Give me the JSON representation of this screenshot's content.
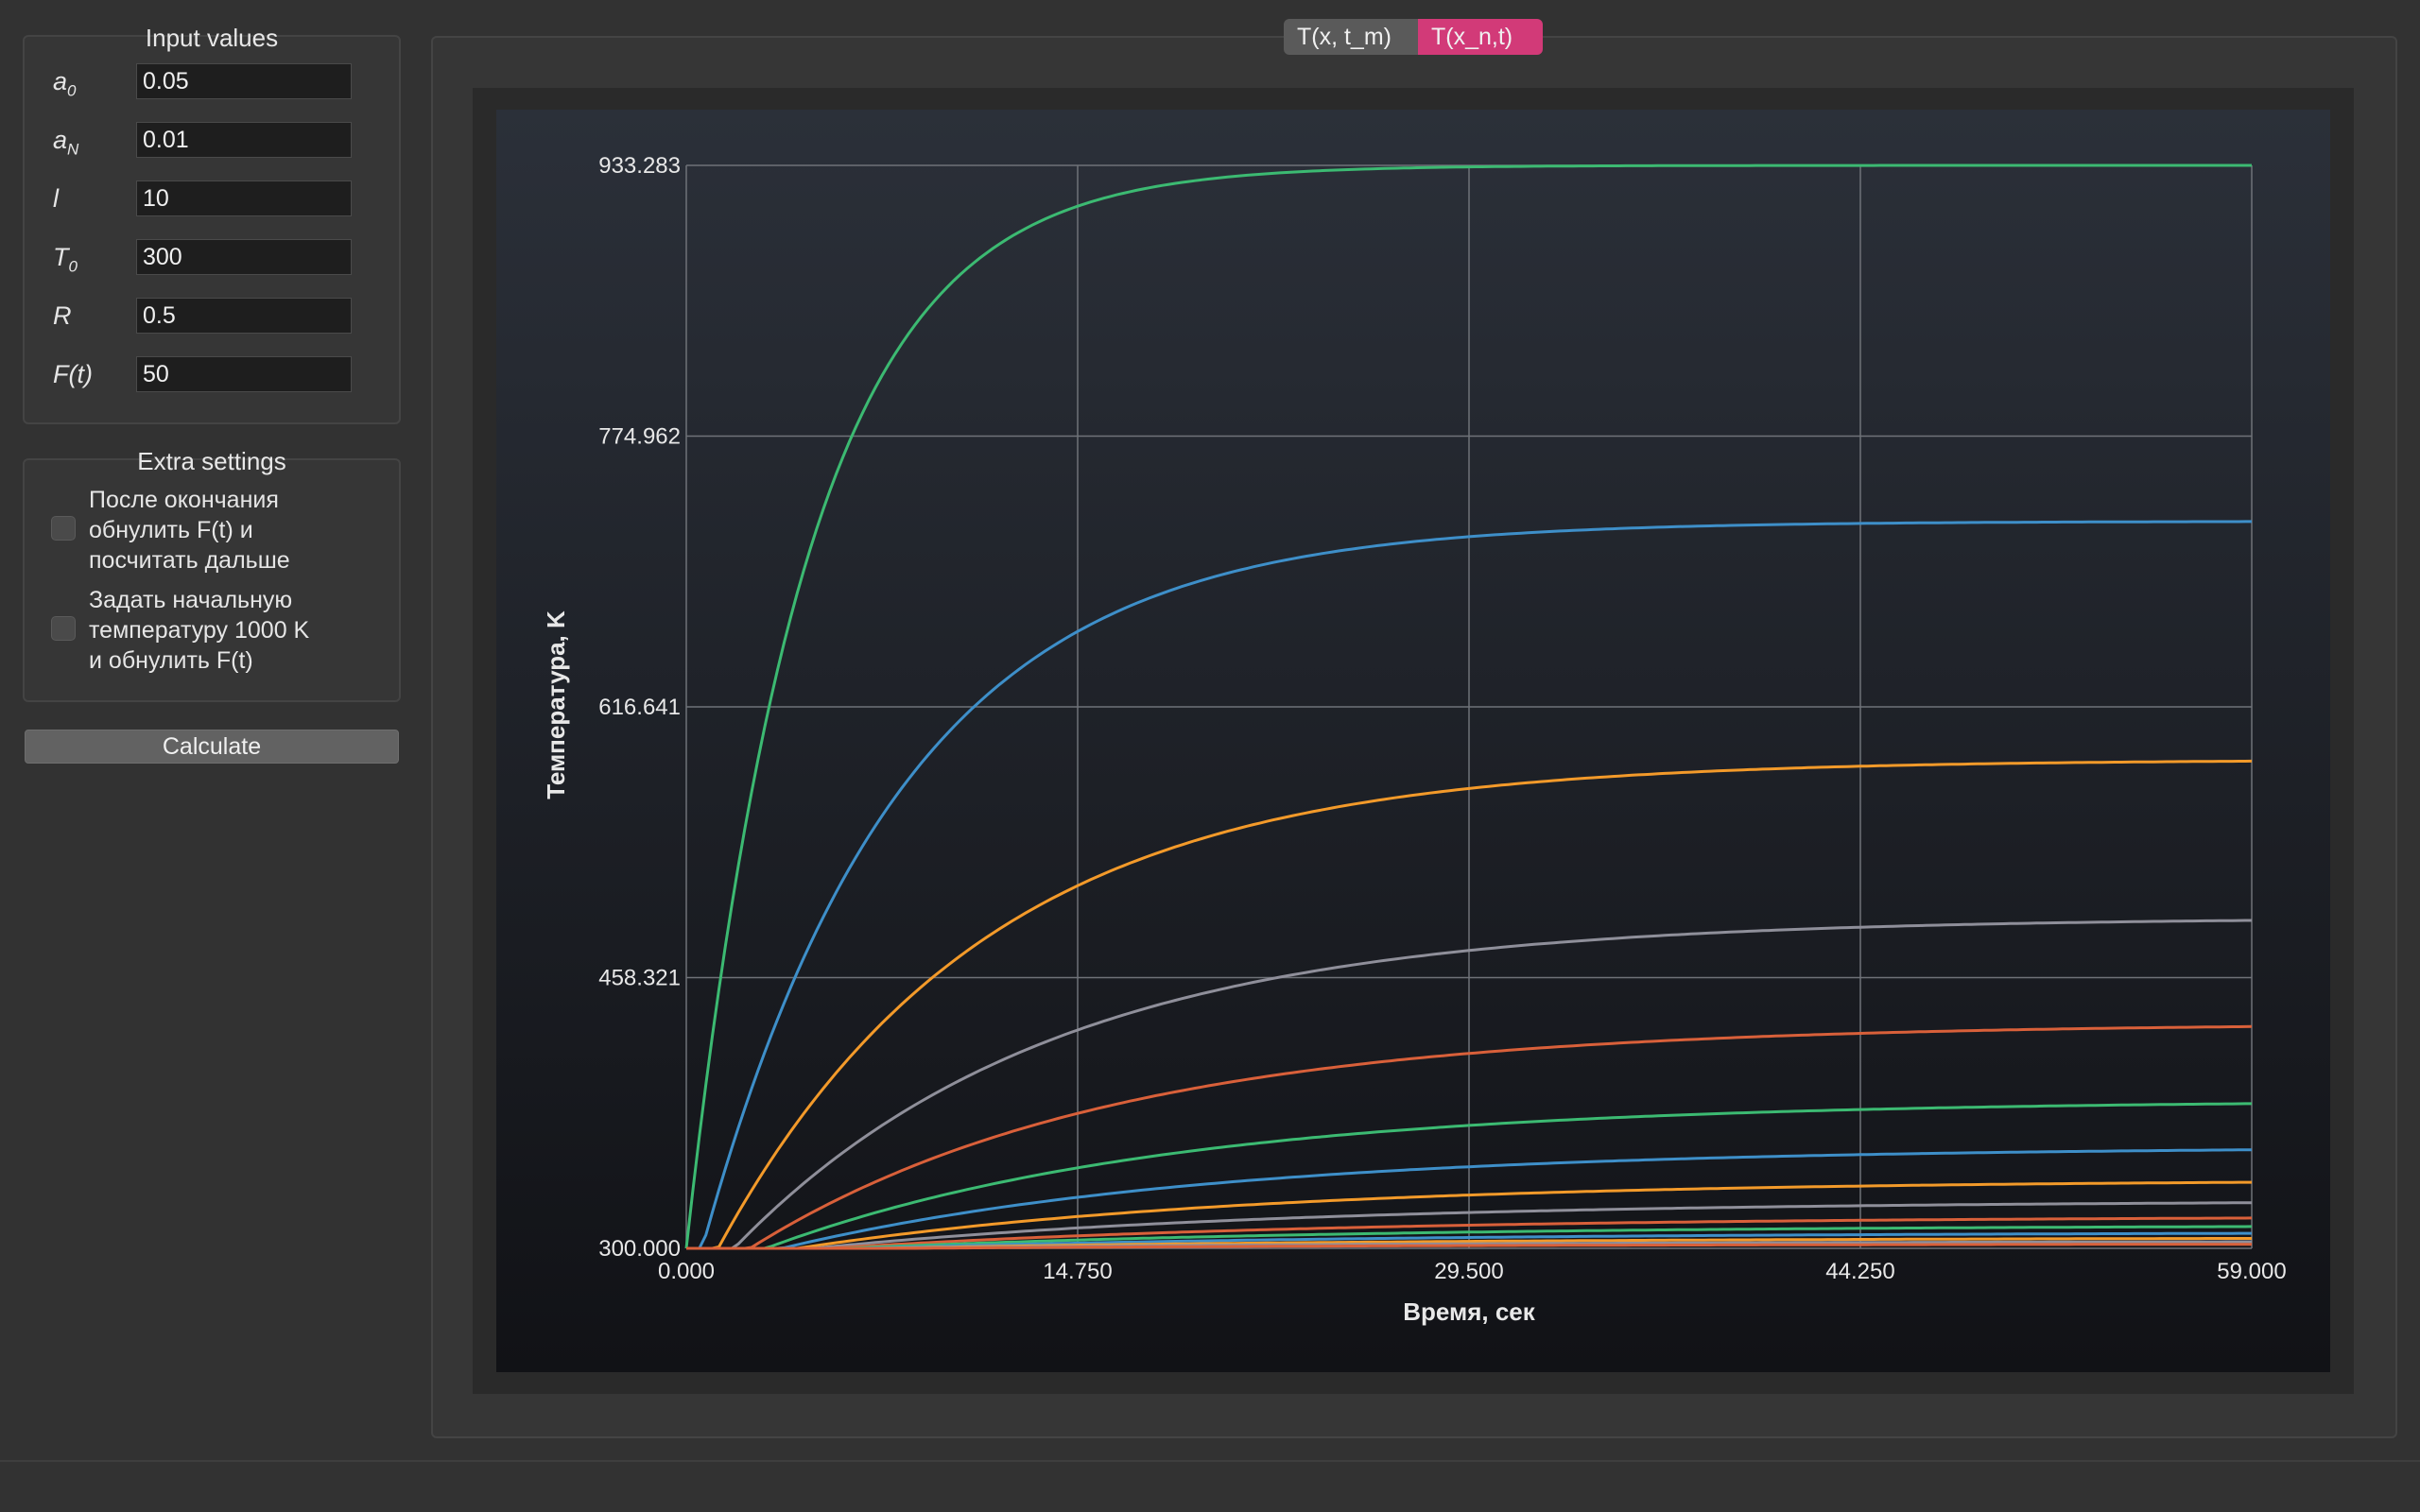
{
  "input_values": {
    "title": "Input values",
    "params": [
      {
        "label_main": "a",
        "label_sub": "0",
        "value": "0.05"
      },
      {
        "label_main": "a",
        "label_sub": "N",
        "value": "0.01"
      },
      {
        "label_main": "l",
        "label_sub": "",
        "value": "10"
      },
      {
        "label_main": "T",
        "label_sub": "0",
        "value": "300"
      },
      {
        "label_main": "R",
        "label_sub": "",
        "value": "0.5"
      },
      {
        "label_main": "F(t)",
        "label_sub": "",
        "value": "50"
      }
    ]
  },
  "extra_settings": {
    "title": "Extra settings",
    "options": [
      {
        "lines": [
          "После окончания",
          "обнулить F(t) и",
          "посчитать дальше"
        ],
        "checked": false
      },
      {
        "lines": [
          "Задать начальную",
          "температуру 1000 K",
          "и обнулить F(t)"
        ],
        "checked": false
      }
    ]
  },
  "calculate_label": "Calculate",
  "tabs": [
    {
      "label": "T(x, t_m)",
      "active": false
    },
    {
      "label": "T(x_n,t)",
      "active": true
    }
  ],
  "chart_data": {
    "type": "line",
    "xlabel": "Время, сек",
    "ylabel": "Температура, K",
    "xlim": [
      0,
      59
    ],
    "ylim": [
      300,
      933.283
    ],
    "x_ticks": [
      "0.000",
      "14.750",
      "29.500",
      "44.250",
      "59.000"
    ],
    "y_ticks": [
      "300.000",
      "458.321",
      "616.641",
      "774.962",
      "933.283"
    ],
    "grid": true,
    "series": [
      {
        "color": "#3cba72",
        "final": 933.283,
        "tau": 4.5
      },
      {
        "color": "#3e8fc9",
        "final": 725,
        "tau": 7.5
      },
      {
        "color": "#f39a2a",
        "final": 585,
        "tau": 10
      },
      {
        "color": "#8f8f9a",
        "final": 492,
        "tau": 12
      },
      {
        "color": "#d9603a",
        "final": 430,
        "tau": 13.5
      },
      {
        "color": "#3cba72",
        "final": 385,
        "tau": 15
      },
      {
        "color": "#3e8fc9",
        "final": 358,
        "tau": 16
      },
      {
        "color": "#f39a2a",
        "final": 339,
        "tau": 17
      },
      {
        "color": "#8f8f9a",
        "final": 327,
        "tau": 18
      },
      {
        "color": "#d9603a",
        "final": 318,
        "tau": 19
      },
      {
        "color": "#3cba72",
        "final": 313,
        "tau": 20
      },
      {
        "color": "#3e8fc9",
        "final": 309,
        "tau": 21
      },
      {
        "color": "#f39a2a",
        "final": 306,
        "tau": 22
      },
      {
        "color": "#8f8f9a",
        "final": 304,
        "tau": 23
      },
      {
        "color": "#d9603a",
        "final": 302.5,
        "tau": 24
      }
    ]
  }
}
